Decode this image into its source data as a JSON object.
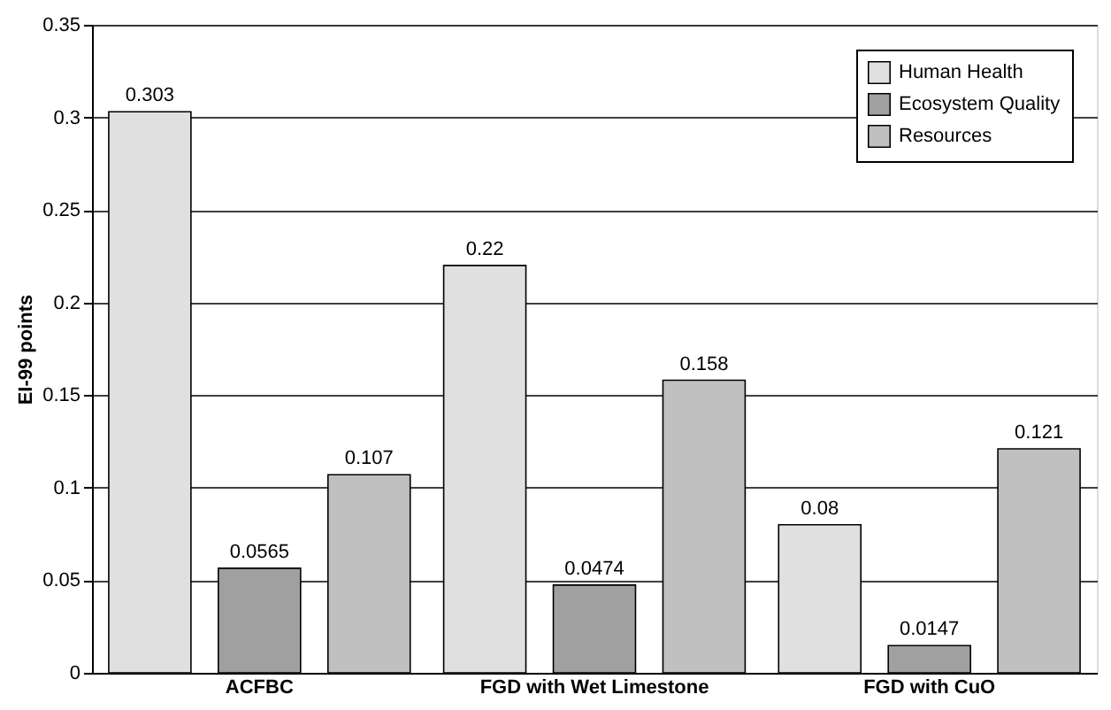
{
  "chart_data": {
    "type": "bar",
    "ylabel": "EI-99 points",
    "categories": [
      "ACFBC",
      "FGD with Wet Limestone",
      "FGD with CuO"
    ],
    "series": [
      {
        "name": "Human Health",
        "color": "#e0e0e0",
        "values": [
          0.303,
          0.22,
          0.08
        ]
      },
      {
        "name": "Ecosystem Quality",
        "color": "#a0a0a0",
        "values": [
          0.0565,
          0.0474,
          0.0147
        ]
      },
      {
        "name": "Resources",
        "color": "#c0c0c0",
        "values": [
          0.107,
          0.158,
          0.121
        ]
      }
    ],
    "ylim": [
      0,
      0.35
    ],
    "yticks": [
      0,
      0.05,
      0.1,
      0.15,
      0.2,
      0.25,
      0.3,
      0.35
    ],
    "grid": "y",
    "legend": "top right",
    "data_labels": true
  }
}
